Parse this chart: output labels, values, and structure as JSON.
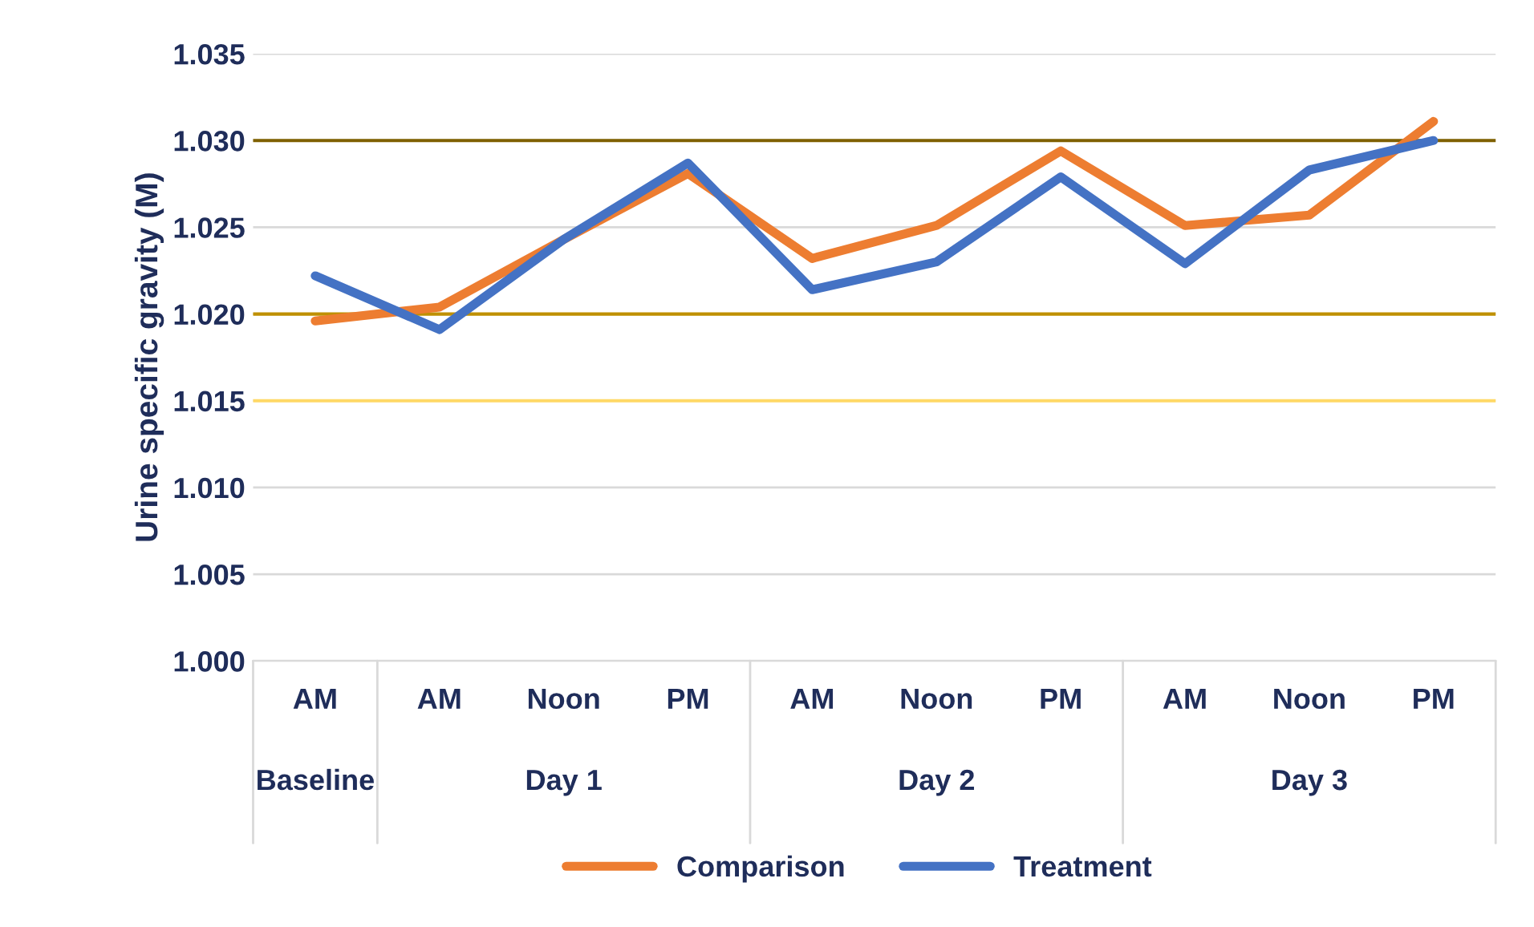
{
  "chart_data": {
    "type": "line",
    "ylabel": "Urine specific gravity (M)",
    "categories": [
      "AM",
      "AM",
      "Noon",
      "PM",
      "AM",
      "Noon",
      "PM",
      "AM",
      "Noon",
      "PM"
    ],
    "annotations": [
      "Baseline",
      "Day 1",
      "Day 2",
      "Day 3"
    ],
    "series": [
      {
        "name": "Comparison",
        "color": "#ed7d31",
        "values": [
          1.0196,
          1.0204,
          1.0243,
          1.0281,
          1.0232,
          1.0251,
          1.0294,
          1.0251,
          1.0257,
          1.0311
        ]
      },
      {
        "name": "Treatment",
        "color": "#4472c4",
        "values": [
          1.0222,
          1.0191,
          1.0243,
          1.0287,
          1.0214,
          1.023,
          1.0279,
          1.0229,
          1.0283,
          1.03
        ]
      }
    ],
    "ylim": [
      1.0,
      1.035
    ],
    "yticks": [
      {
        "value": 1.0,
        "label": "1.000"
      },
      {
        "value": 1.005,
        "label": "1.005"
      },
      {
        "value": 1.01,
        "label": "1.010"
      },
      {
        "value": 1.015,
        "label": "1.015"
      },
      {
        "value": 1.02,
        "label": "1.020"
      },
      {
        "value": 1.025,
        "label": "1.025"
      },
      {
        "value": 1.03,
        "label": "1.030"
      },
      {
        "value": 1.035,
        "label": "1.035"
      }
    ],
    "ref_lines": [
      {
        "axis": "y",
        "value": 1.015,
        "color": "#ffd966"
      },
      {
        "axis": "y",
        "value": 1.02,
        "color": "#bf9000"
      },
      {
        "axis": "y",
        "value": 1.03,
        "color": "#7f6000"
      }
    ],
    "grid": "y",
    "legend": "bottom",
    "marker": "none",
    "line_style": "solid"
  }
}
